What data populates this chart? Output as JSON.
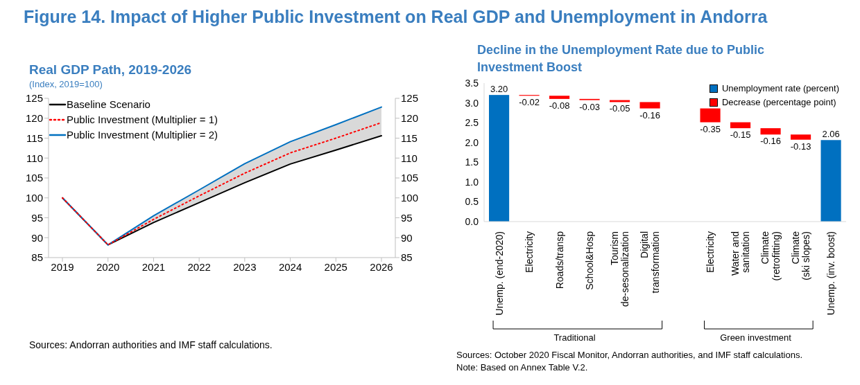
{
  "chart_data": [
    {
      "type": "line",
      "title": "Figure 14. Impact of Higher Public Investment on Real GDP and Unemployment in Andorra",
      "subtitle": "Real GDP Path, 2019-2026",
      "ylabel": "(Index, 2019=100)",
      "categories": [
        "2019",
        "2020",
        "2021",
        "2022",
        "2023",
        "2024",
        "2025",
        "2026"
      ],
      "series": [
        {
          "name": "Baseline Scenario",
          "color": "#000000",
          "line_style": "solid",
          "values": [
            100,
            88.2,
            93.8,
            98.8,
            103.8,
            108.5,
            112.0,
            115.6
          ]
        },
        {
          "name": "Public Investment (Multiplier = 1)",
          "color": "#ff0000",
          "line_style": "dotted",
          "values": [
            100,
            88.2,
            94.6,
            100.5,
            106.2,
            111.3,
            115.0,
            118.9
          ],
          "lower": [
            100,
            88.2,
            93.8,
            98.8,
            103.8,
            108.5,
            112.0,
            115.6
          ],
          "upper": [
            100,
            88.2,
            95.5,
            102.0,
            108.6,
            114.1,
            118.4,
            122.8
          ]
        },
        {
          "name": "Public Investment (Multiplier = 2)",
          "color": "#0070c0",
          "line_style": "solid",
          "values": [
            100,
            88.2,
            95.5,
            102.0,
            108.6,
            114.1,
            118.4,
            122.8
          ]
        }
      ],
      "ylim": [
        85,
        125
      ],
      "yticks": [
        85,
        90,
        95,
        100,
        105,
        110,
        115,
        120,
        125
      ],
      "y2lim": [
        85,
        125
      ],
      "y2ticks": [
        85,
        90,
        95,
        100,
        105,
        110,
        115,
        120,
        125
      ],
      "marker": "none",
      "legend": "top left",
      "grid": false,
      "annotations": [
        "Sources: Andorran authorities and IMF staff calculations."
      ]
    },
    {
      "type": "bar",
      "title": "Decline in the Unemployment Rate due to Public Investment Boost",
      "categories": [
        "Unemp. (end-2020)",
        "Electricity",
        "Roads/transp",
        "School&Hosp",
        "Tourism\nde-sesonalization",
        "Digital\ntransformation",
        null,
        "Electricity",
        "Water and\nsanitation",
        "Climate\n(retrofitting)",
        "Climate\n(ski slopes)",
        "Unemp. (inv. boost)"
      ],
      "series": [
        {
          "name": "Unemployment rate (percent)",
          "color": "#0070c0",
          "values": [
            3.2,
            null,
            null,
            null,
            null,
            null,
            null,
            null,
            null,
            null,
            null,
            2.06
          ],
          "base": [
            0,
            null,
            null,
            null,
            null,
            null,
            null,
            null,
            null,
            null,
            null,
            0
          ],
          "value_labels": [
            "3.20",
            null,
            null,
            null,
            null,
            null,
            null,
            null,
            null,
            null,
            null,
            "2.06"
          ]
        },
        {
          "name": "Decrease (percentage point)",
          "color": "#ff0000",
          "values": [
            null,
            -0.02,
            -0.08,
            -0.03,
            -0.05,
            -0.16,
            null,
            -0.35,
            -0.15,
            -0.16,
            -0.13,
            null
          ],
          "base": [
            null,
            3.2,
            3.18,
            3.1,
            3.07,
            3.02,
            null,
            2.86,
            2.51,
            2.36,
            2.2,
            null
          ],
          "value_labels": [
            null,
            "-0.02",
            "-0.08",
            "-0.03",
            "-0.05",
            "-0.16",
            null,
            "-0.35",
            "-0.15",
            "-0.16",
            "-0.13",
            null
          ]
        }
      ],
      "ylim": [
        0,
        3.5
      ],
      "yticks": [
        {
          "value": 0,
          "label": "0.0"
        },
        {
          "value": 0.5,
          "label": "0.5"
        },
        {
          "value": 1,
          "label": "1.0"
        },
        {
          "value": 1.5,
          "label": "1.5"
        },
        {
          "value": 2,
          "label": "2.0"
        },
        {
          "value": 2.5,
          "label": "2.5"
        },
        {
          "value": 3,
          "label": "3.0"
        },
        {
          "value": 3.5,
          "label": "3.5"
        }
      ],
      "legend": "top right",
      "grid": false,
      "annotations": [
        "Traditional",
        "Green investment",
        "Sources: October 2020 Fiscal Monitor, Andorran authorities, and IMF staff calculations.",
        "Note: Based on Annex Table V.2."
      ]
    }
  ]
}
